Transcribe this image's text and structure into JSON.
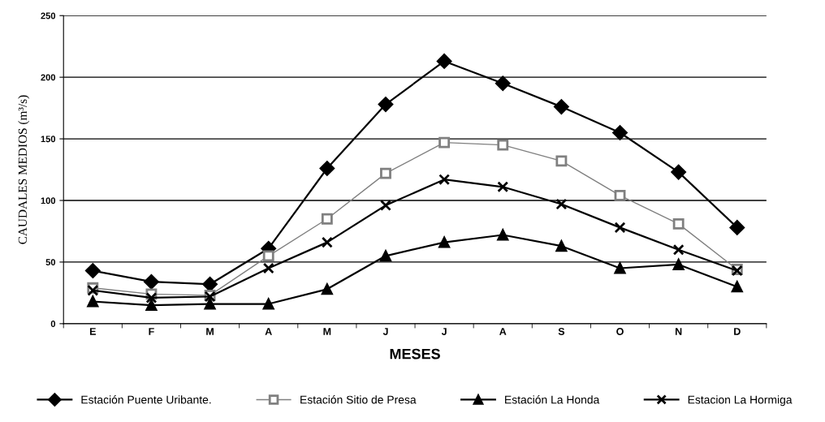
{
  "chart_data": {
    "type": "line",
    "xlabel": "MESES",
    "ylabel": "CAUDALES MEDIOS (m³/s)",
    "categories": [
      "E",
      "F",
      "M",
      "A",
      "M",
      "J",
      "J",
      "A",
      "S",
      "O",
      "N",
      "D"
    ],
    "ylim": [
      0,
      250
    ],
    "yticks": [
      0,
      50,
      100,
      150,
      200,
      250
    ],
    "grid": "y",
    "legend": "bottom",
    "line_style": "solid",
    "series": [
      {
        "name": "Estación Puente Uribante.",
        "color": "#000000",
        "marker": "diamond",
        "values": [
          43,
          34,
          32,
          61,
          126,
          178,
          213,
          195,
          176,
          155,
          123,
          78
        ]
      },
      {
        "name": "Estación Sitio de Presa",
        "color": "#808080",
        "marker": "square",
        "values": [
          29,
          24,
          23,
          55,
          85,
          122,
          147,
          145,
          132,
          104,
          81,
          44
        ]
      },
      {
        "name": "Estación La Honda",
        "color": "#000000",
        "marker": "triangle",
        "values": [
          18,
          15,
          16,
          16,
          28,
          55,
          66,
          72,
          63,
          45,
          48,
          30
        ]
      },
      {
        "name": "Estacion La Hormiga",
        "color": "#000000",
        "marker": "cross",
        "values": [
          27,
          21,
          22,
          45,
          66,
          96,
          117,
          111,
          97,
          78,
          60,
          43
        ]
      }
    ]
  }
}
